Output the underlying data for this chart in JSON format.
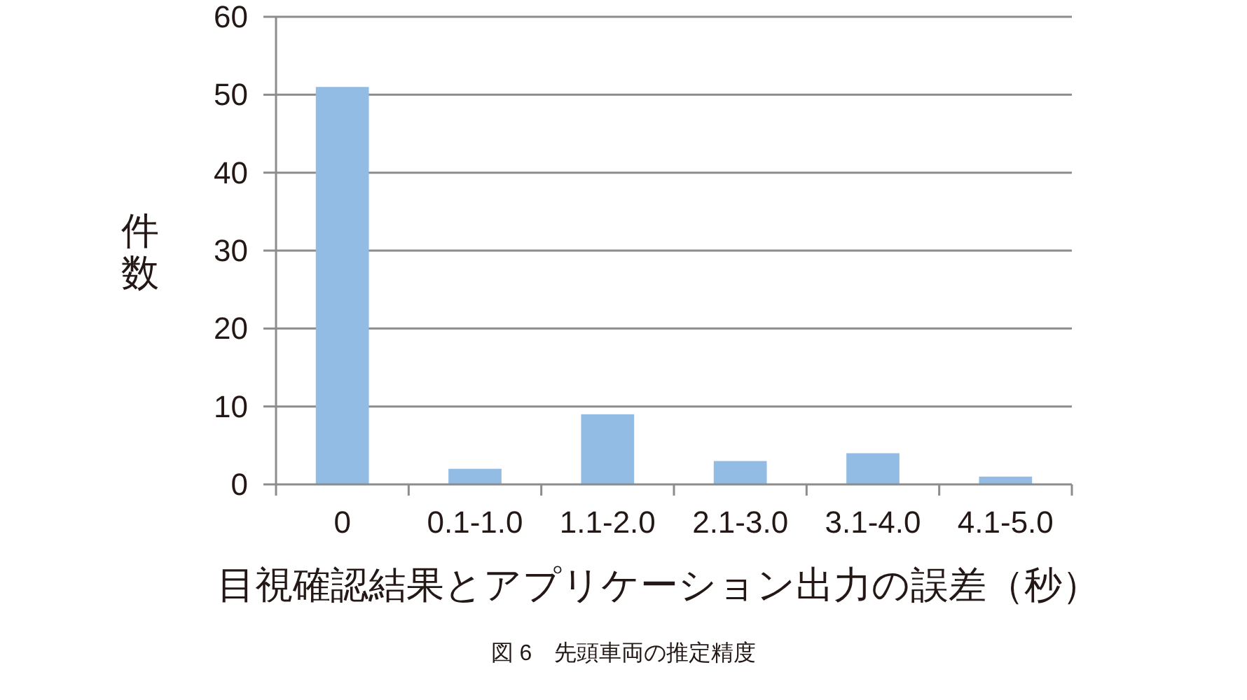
{
  "chart_data": {
    "type": "bar",
    "categories": [
      "0",
      "0.1-1.0",
      "1.1-2.0",
      "2.1-3.0",
      "3.1-4.0",
      "4.1-5.0"
    ],
    "values": [
      51,
      2,
      9,
      3,
      4,
      1
    ],
    "color": "#93bce5",
    "ylim": [
      0,
      60
    ],
    "yticks": [
      0,
      10,
      20,
      30,
      40,
      50,
      60
    ],
    "grid": "y",
    "ylabel": "件数",
    "xlabel": "目視確認結果とアプリケーション出力の誤差（秒）",
    "annotations": [
      "図 6　先頭車両の推定精度"
    ]
  }
}
